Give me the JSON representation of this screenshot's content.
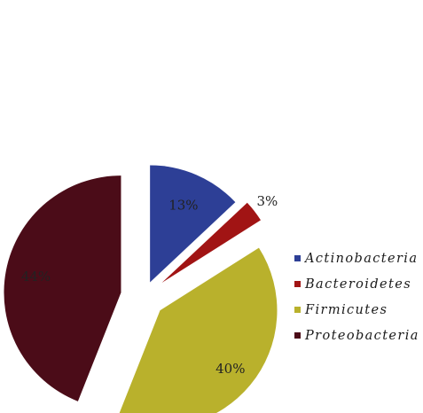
{
  "chart_data": {
    "type": "pie",
    "series": [
      {
        "name": "",
        "values": [
          13,
          3,
          40,
          44
        ],
        "labels": [
          "13%",
          "3%",
          "40%",
          "44%"
        ]
      }
    ],
    "categories": [
      "Actinobacteria",
      "Bacteroidetes",
      "Firmicutes",
      "Proteobacteria"
    ],
    "colors": [
      "#2d3f96",
      "#a11414",
      "#b9b12c",
      "#4b0c18"
    ],
    "exploded": true,
    "start_angle_deg": 0,
    "direction": "clockwise",
    "legend": {
      "position": "right",
      "entries": [
        "Actinobacteria",
        "Bacteroidetes",
        "Firmicutes",
        "Proteobacteria"
      ]
    }
  }
}
